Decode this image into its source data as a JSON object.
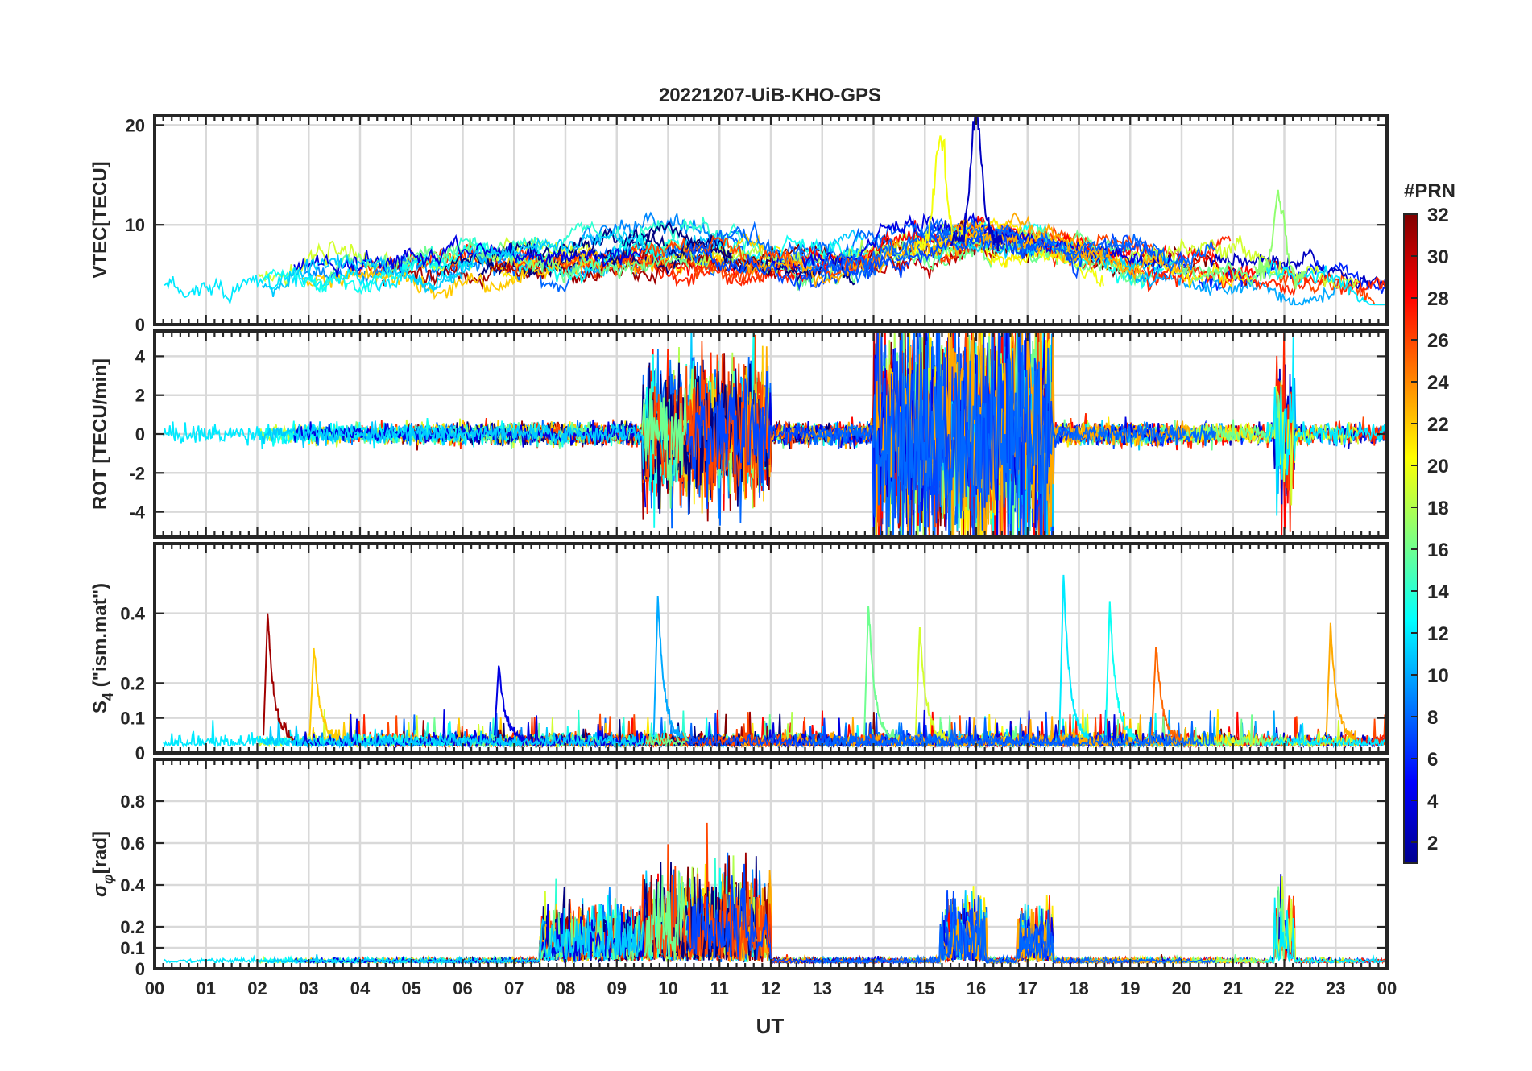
{
  "figure": {
    "title": "20221207-UiB-KHO-GPS",
    "xlabel": "UT"
  },
  "colorbar": {
    "label": "#PRN",
    "ticks": [
      2,
      4,
      6,
      8,
      10,
      12,
      14,
      16,
      18,
      20,
      22,
      24,
      26,
      28,
      30,
      32
    ],
    "range": [
      1,
      32
    ],
    "colormap": "jet"
  },
  "chart_data": [
    {
      "type": "line",
      "panel": "vtec",
      "ylabel": "VTEC[TECU]",
      "xlim": [
        0,
        24
      ],
      "ylim": [
        0,
        21
      ],
      "yticks": [
        0,
        10,
        20
      ],
      "xticks": [
        "00",
        "01",
        "02",
        "03",
        "04",
        "05",
        "06",
        "07",
        "08",
        "09",
        "10",
        "11",
        "12",
        "13",
        "14",
        "15",
        "16",
        "17",
        "18",
        "19",
        "20",
        "21",
        "22",
        "23",
        "00"
      ],
      "series_by": "PRN",
      "approx_envelope": [
        {
          "x": 0,
          "y": 4
        },
        {
          "x": 2,
          "y": 4.5
        },
        {
          "x": 4,
          "y": 5
        },
        {
          "x": 6,
          "y": 6
        },
        {
          "x": 8,
          "y": 6.5
        },
        {
          "x": 10,
          "y": 7
        },
        {
          "x": 11,
          "y": 7
        },
        {
          "x": 13,
          "y": 5.5
        },
        {
          "x": 15,
          "y": 8
        },
        {
          "x": 16,
          "y": 9
        },
        {
          "x": 17,
          "y": 8
        },
        {
          "x": 19,
          "y": 6
        },
        {
          "x": 21,
          "y": 6
        },
        {
          "x": 22,
          "y": 5
        },
        {
          "x": 24,
          "y": 3.5
        }
      ],
      "peaks": [
        {
          "x": 15.3,
          "y": 19,
          "prn": 20
        },
        {
          "x": 16.0,
          "y": 21,
          "prn": 3
        },
        {
          "x": 21.9,
          "y": 13,
          "prn": 17
        }
      ]
    },
    {
      "type": "line",
      "panel": "rot",
      "ylabel": "ROT [TECU/min]",
      "xlim": [
        0,
        24
      ],
      "ylim": [
        -5.3,
        5.3
      ],
      "yticks": [
        -4,
        -2,
        0,
        2,
        4
      ],
      "series_by": "PRN",
      "active_intervals": [
        {
          "start": 9.5,
          "end": 12.0,
          "amplitude": 3
        },
        {
          "start": 14.0,
          "end": 17.5,
          "amplitude": 5.3
        },
        {
          "start": 21.8,
          "end": 22.2,
          "amplitude": 4
        }
      ]
    },
    {
      "type": "line",
      "panel": "s4",
      "ylabel": "S4 (\"ism.mat\")",
      "xlim": [
        0,
        24
      ],
      "ylim": [
        0,
        0.6
      ],
      "yticks": [
        0,
        0.1,
        0.2,
        0.4
      ],
      "series_by": "PRN",
      "spikes": [
        {
          "x": 2.2,
          "y": 0.4,
          "prn": 31
        },
        {
          "x": 3.1,
          "y": 0.3,
          "prn": 22
        },
        {
          "x": 6.7,
          "y": 0.25,
          "prn": 4
        },
        {
          "x": 9.8,
          "y": 0.45,
          "prn": 10
        },
        {
          "x": 13.9,
          "y": 0.42,
          "prn": 16
        },
        {
          "x": 14.9,
          "y": 0.36,
          "prn": 19
        },
        {
          "x": 17.7,
          "y": 0.51,
          "prn": 12
        },
        {
          "x": 18.6,
          "y": 0.43,
          "prn": 13
        },
        {
          "x": 19.5,
          "y": 0.3,
          "prn": 25
        },
        {
          "x": 22.9,
          "y": 0.36,
          "prn": 23
        }
      ]
    },
    {
      "type": "line",
      "panel": "sigma_phi",
      "ylabel": "σφ[rad]",
      "xlim": [
        0,
        24
      ],
      "ylim": [
        0,
        1.0
      ],
      "yticks": [
        0,
        0.1,
        0.2,
        0.4,
        0.6,
        0.8
      ],
      "series_by": "PRN",
      "active_intervals": [
        {
          "start": 7.5,
          "end": 9.5,
          "amplitude": 0.3
        },
        {
          "start": 9.5,
          "end": 12.0,
          "amplitude": 0.5
        },
        {
          "start": 15.3,
          "end": 16.2,
          "amplitude": 0.34
        },
        {
          "start": 16.8,
          "end": 17.5,
          "amplitude": 0.3
        },
        {
          "start": 21.8,
          "end": 22.2,
          "amplitude": 0.4
        }
      ]
    }
  ]
}
